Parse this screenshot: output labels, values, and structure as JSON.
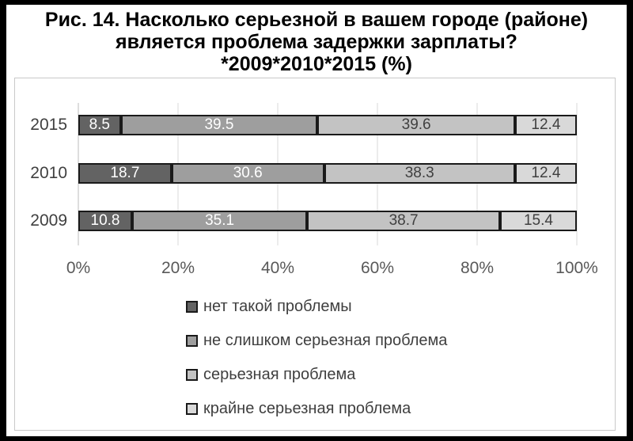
{
  "title": {
    "line1": "Рис. 14. Насколько серьезной в вашем городе (районе)",
    "line2": "является проблема задержки зарплаты?",
    "line3": "*2009*2010*2015 (%)"
  },
  "chart_data": {
    "type": "bar",
    "orientation": "horizontal",
    "stacked": true,
    "title": "Рис. 14. Насколько серьезной в вашем городе (районе) является проблема задержки зарплаты? *2009*2010*2015 (%)",
    "categories": [
      "2015",
      "2010",
      "2009"
    ],
    "series": [
      {
        "name": "нет такой проблемы",
        "values": [
          8.5,
          18.7,
          10.8
        ],
        "color": "#636363",
        "label_color": "#ffffff"
      },
      {
        "name": "не слишком серьезная проблема",
        "values": [
          39.5,
          30.6,
          35.1
        ],
        "color": "#9e9e9e",
        "label_color": "#ffffff"
      },
      {
        "name": "серьезная проблема",
        "values": [
          39.6,
          38.3,
          38.7
        ],
        "color": "#c3c3c3",
        "label_color": "#404040"
      },
      {
        "name": "крайне серьезная проблема",
        "values": [
          12.4,
          12.4,
          15.4
        ],
        "color": "#d9d9d9",
        "label_color": "#404040"
      }
    ],
    "x_ticks": [
      "0%",
      "20%",
      "40%",
      "60%",
      "80%",
      "100%"
    ],
    "xlim": [
      0,
      100
    ],
    "grid": true,
    "value_labels": true,
    "legend_position": "bottom"
  },
  "colors": {
    "gridline": "#d9d9d9",
    "axis_line": "#bdbdbd",
    "segment_border": "#1a1a1a",
    "chart_box_border": "#c9c9c9",
    "category_label": "#404040",
    "tick_label": "#595959",
    "legend_label": "#3f3f3f",
    "outer_frame": "#000000"
  }
}
